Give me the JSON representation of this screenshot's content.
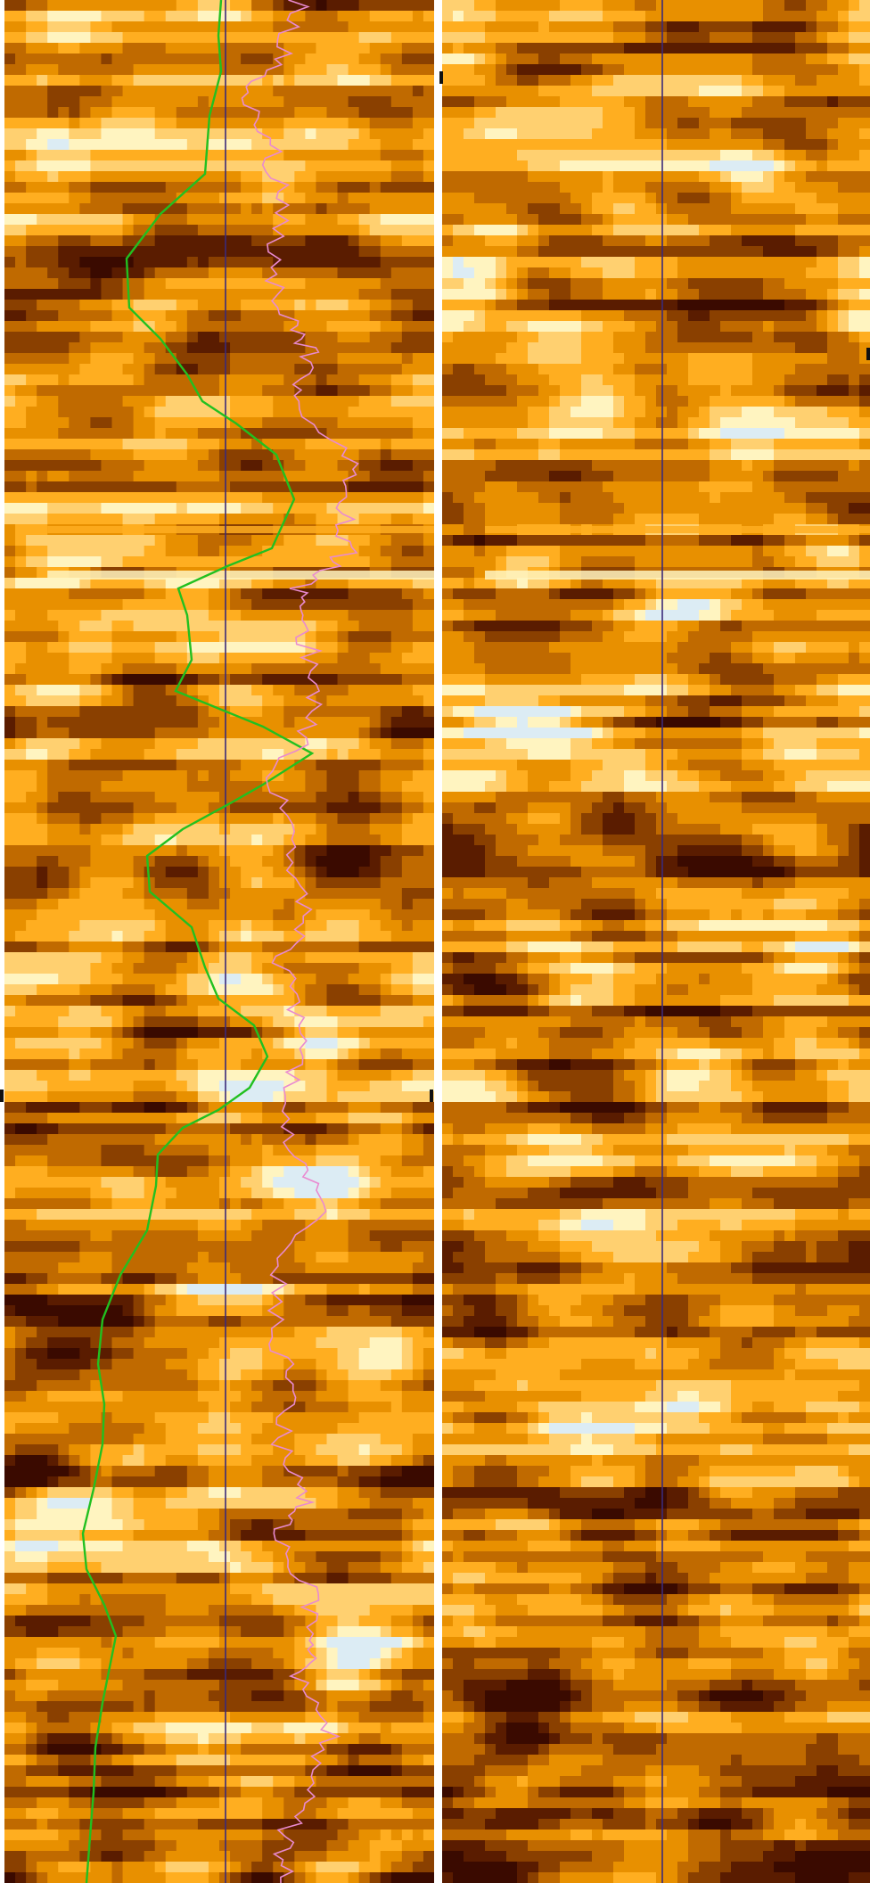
{
  "viewer": {
    "panels": [
      {
        "id": "left",
        "has_curves": true
      },
      {
        "id": "right",
        "has_curves": false
      }
    ],
    "colormap": [
      "#3a0a00",
      "#5a1c00",
      "#8a4000",
      "#c06a00",
      "#e89000",
      "#ffae20",
      "#ffd070",
      "#fff4c0",
      "#dcecf4"
    ],
    "colors": {
      "marker_line": "#3a2a7a",
      "curve_green": "#22c020",
      "curve_pink": "#e98ad0",
      "divider": "#ffffff"
    }
  }
}
